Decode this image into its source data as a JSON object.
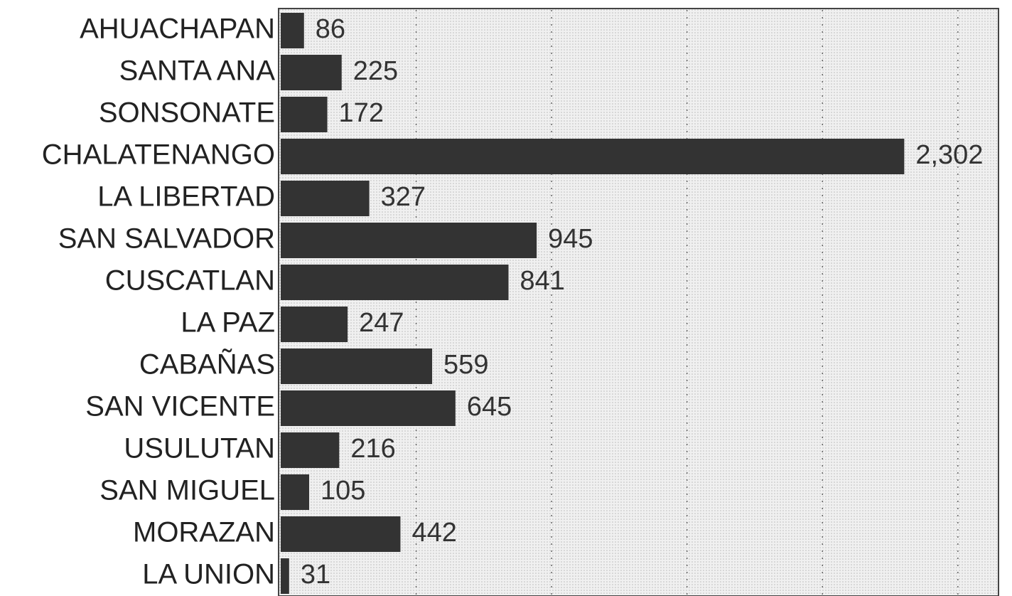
{
  "chart_data": {
    "type": "bar",
    "orientation": "horizontal",
    "categories": [
      "AHUACHAPAN",
      "SANTA ANA",
      "SONSONATE",
      "CHALATENANGO",
      "LA LIBERTAD",
      "SAN SALVADOR",
      "CUSCATLAN",
      "LA PAZ",
      "CABAÑAS",
      "SAN VICENTE",
      "USULUTAN",
      "SAN MIGUEL",
      "MORAZAN",
      "LA UNION"
    ],
    "values": [
      86,
      225,
      172,
      2302,
      327,
      945,
      841,
      247,
      559,
      645,
      216,
      105,
      442,
      31
    ],
    "value_labels": [
      "86",
      "225",
      "172",
      "2,302",
      "327",
      "945",
      "841",
      "247",
      "559",
      "645",
      "216",
      "105",
      "442",
      "31"
    ],
    "color": "#333333",
    "xlim": [
      0,
      2650
    ],
    "xticks": [
      0,
      500,
      1000,
      1500,
      2000,
      2500
    ],
    "grid": true
  }
}
